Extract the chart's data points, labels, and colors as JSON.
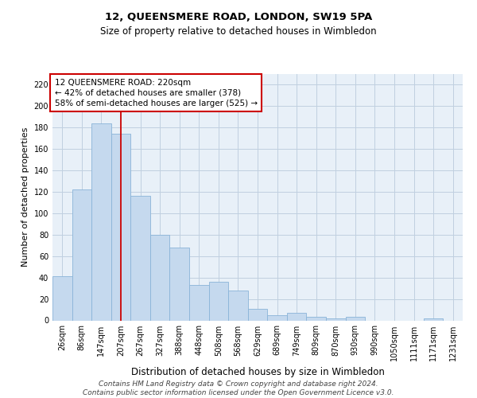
{
  "title": "12, QUEENSMERE ROAD, LONDON, SW19 5PA",
  "subtitle": "Size of property relative to detached houses in Wimbledon",
  "xlabel": "Distribution of detached houses by size in Wimbledon",
  "ylabel": "Number of detached properties",
  "footer_line1": "Contains HM Land Registry data © Crown copyright and database right 2024.",
  "footer_line2": "Contains public sector information licensed under the Open Government Licence v3.0.",
  "categories": [
    "26sqm",
    "86sqm",
    "147sqm",
    "207sqm",
    "267sqm",
    "327sqm",
    "388sqm",
    "448sqm",
    "508sqm",
    "568sqm",
    "629sqm",
    "689sqm",
    "749sqm",
    "809sqm",
    "870sqm",
    "930sqm",
    "990sqm",
    "1050sqm",
    "1111sqm",
    "1171sqm",
    "1231sqm"
  ],
  "values": [
    41,
    122,
    184,
    174,
    116,
    80,
    68,
    33,
    36,
    28,
    11,
    5,
    7,
    3,
    2,
    3,
    0,
    0,
    0,
    2,
    0
  ],
  "bar_color": "#c5d9ee",
  "bar_edge_color": "#8ab4d8",
  "vline_x": 3.0,
  "vline_color": "#cc0000",
  "annotation_text": "12 QUEENSMERE ROAD: 220sqm\n← 42% of detached houses are smaller (378)\n58% of semi-detached houses are larger (525) →",
  "annotation_box_color": "#ffffff",
  "annotation_box_edge_color": "#cc0000",
  "ylim": [
    0,
    230
  ],
  "yticks": [
    0,
    20,
    40,
    60,
    80,
    100,
    120,
    140,
    160,
    180,
    200,
    220
  ],
  "plot_facecolor": "#e8f0f8",
  "background_color": "#ffffff",
  "grid_color": "#c0d0e0",
  "title_fontsize": 9.5,
  "subtitle_fontsize": 8.5,
  "xlabel_fontsize": 8.5,
  "ylabel_fontsize": 8,
  "tick_fontsize": 7,
  "annotation_fontsize": 7.5,
  "footer_fontsize": 6.5
}
